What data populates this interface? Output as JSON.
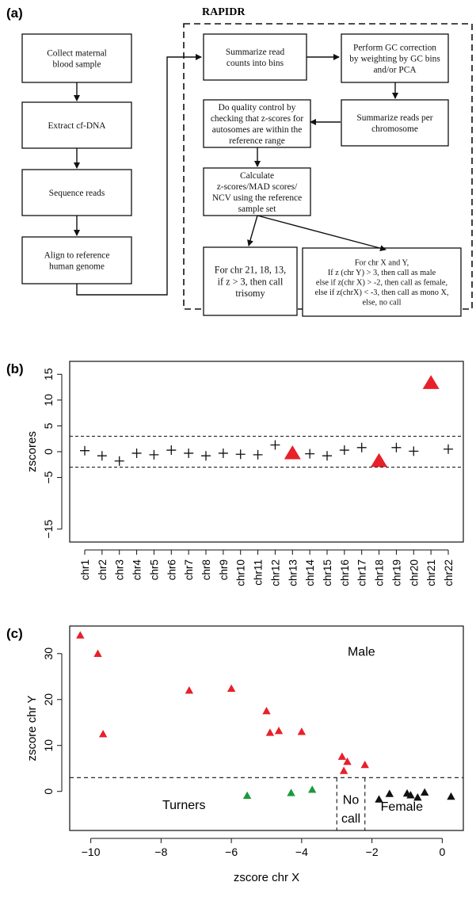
{
  "panel_a": {
    "label": "(a)",
    "group_title": "RAPIDR",
    "left_boxes": [
      "Collect maternal\nblood sample",
      "Extract cf-DNA",
      "Sequence reads",
      "Align to reference\nhuman genome"
    ],
    "summarize_bins": "Summarize read\ncounts into bins",
    "gc_correction": "Perform GC correction\nby weighting by GC bins\nand/or PCA",
    "summarize_chrom": "Summarize reads per\nchromosome",
    "quality_control": "Do quality control by\nchecking that z-scores for\nautosomes are within the\nreference range",
    "calculate": "Calculate\nz-scores/MAD scores/\nNCV using the reference\nsample set",
    "trisomy_rule": "For chr 21, 18, 13,\nif z > 3, then call\ntrisomy",
    "sex_rule": "For chr X and Y,\nIf z (chr Y) > 3, then call as male\nelse if z(chr X) > -2, then call as female,\nelse if z(chrX) < -3, then call as mono X,\nelse, no call"
  },
  "colors": {
    "red": "#e8202a",
    "green": "#1a9a3a",
    "black": "#111111"
  },
  "chart_data": [
    {
      "type": "scatter",
      "panel_label": "(b)",
      "ylabel": "zscores",
      "categories": [
        "chr1",
        "chr2",
        "chr3",
        "chr4",
        "chr5",
        "chr6",
        "chr7",
        "chr8",
        "chr9",
        "chr10",
        "chr11",
        "chr12",
        "chr13",
        "chr14",
        "chr15",
        "chr16",
        "chr17",
        "chr18",
        "chr19",
        "chr20",
        "chr21",
        "chr22"
      ],
      "values": [
        0.2,
        -0.8,
        -1.8,
        -0.3,
        -0.6,
        0.3,
        -0.3,
        -0.8,
        -0.3,
        -0.5,
        -0.6,
        1.3,
        -0.3,
        -0.4,
        -0.8,
        0.3,
        0.8,
        -1.8,
        0.8,
        0.1,
        13.3,
        0.5
      ],
      "highlight": [
        "chr13",
        "chr18",
        "chr21"
      ],
      "yticks": [
        -15,
        -5,
        0,
        5,
        10,
        15
      ],
      "ytick_labels": [
        "−15",
        "−5",
        "0",
        "5",
        "10",
        "15"
      ],
      "ylim": [
        -17.5,
        17.5
      ],
      "reference_lines": [
        3,
        -3
      ]
    },
    {
      "type": "scatter",
      "panel_label": "(c)",
      "xlabel": "zscore chr X",
      "ylabel": "zscore chr Y",
      "xticks": [
        -10,
        -8,
        -6,
        -4,
        -2,
        0
      ],
      "xtick_labels": [
        "−10",
        "−8",
        "−6",
        "−4",
        "−2",
        "0"
      ],
      "yticks": [
        0,
        10,
        20,
        30
      ],
      "ytick_labels": [
        "0",
        "10",
        "20",
        "30"
      ],
      "xlim": [
        -10.6,
        0.6
      ],
      "ylim": [
        -8.5,
        36
      ],
      "threshold_y": 3,
      "threshold_x": [
        -3,
        -2.2
      ],
      "region_labels": {
        "male": "Male",
        "turners": "Turners",
        "no_call": [
          "No",
          "call"
        ],
        "female": "Female"
      },
      "series": [
        {
          "color": "red",
          "points": [
            [
              -10.3,
              34
            ],
            [
              -9.8,
              30
            ],
            [
              -9.65,
              12.5
            ],
            [
              -7.2,
              22
            ],
            [
              -6.0,
              22.4
            ],
            [
              -5.0,
              17.5
            ],
            [
              -4.9,
              12.8
            ],
            [
              -4.65,
              13.2
            ],
            [
              -4.0,
              13
            ],
            [
              -2.85,
              7.6
            ],
            [
              -2.7,
              6.5
            ],
            [
              -2.8,
              4.5
            ],
            [
              -2.2,
              5.8
            ]
          ]
        },
        {
          "color": "green",
          "points": [
            [
              -5.55,
              -0.9
            ],
            [
              -4.3,
              -0.3
            ],
            [
              -3.7,
              0.4
            ]
          ]
        },
        {
          "color": "black",
          "points": [
            [
              -1.8,
              -1.7
            ],
            [
              -1.5,
              -0.5
            ],
            [
              -1.0,
              -0.4
            ],
            [
              -0.9,
              -0.8
            ],
            [
              -0.7,
              -1.3
            ],
            [
              -0.5,
              -0.2
            ],
            [
              0.25,
              -1.1
            ]
          ]
        }
      ]
    }
  ]
}
